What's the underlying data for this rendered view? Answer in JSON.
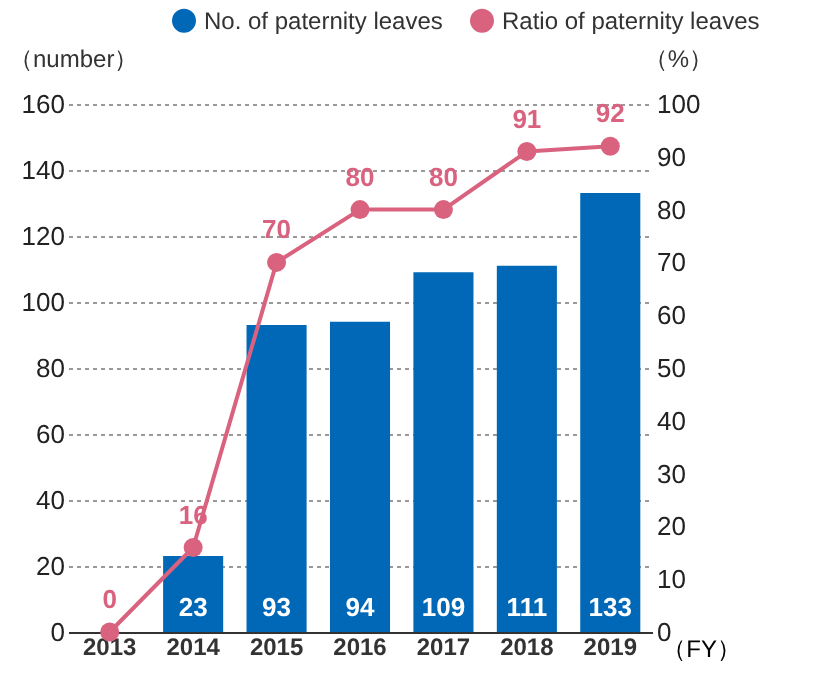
{
  "chart_data": {
    "type": "bar",
    "ylabel": "（number）",
    "y2label": "（%）",
    "xlabel": "（FY）",
    "categories": [
      "2013",
      "2014",
      "2015",
      "2016",
      "2017",
      "2018",
      "2019"
    ],
    "series": [
      {
        "name": "No. of paternity leaves",
        "color": "#0068b7",
        "values": [
          null,
          23,
          93,
          94,
          109,
          111,
          133
        ]
      },
      {
        "name": "Ratio of paternity leaves",
        "type": "line",
        "axis": "y2",
        "color": "#d9627f",
        "values": [
          0,
          16,
          70,
          80,
          80,
          91,
          92
        ]
      }
    ],
    "ylim": [
      0,
      160
    ],
    "yticks": [
      0,
      20,
      40,
      60,
      80,
      100,
      120,
      140,
      160
    ],
    "y2lim": [
      0,
      100
    ],
    "y2ticks": [
      0,
      10,
      20,
      30,
      40,
      50,
      60,
      70,
      80,
      90,
      100
    ],
    "grid": "y",
    "legend": "top right",
    "marker": "circle",
    "line_style": "solid",
    "data_labels": true
  }
}
